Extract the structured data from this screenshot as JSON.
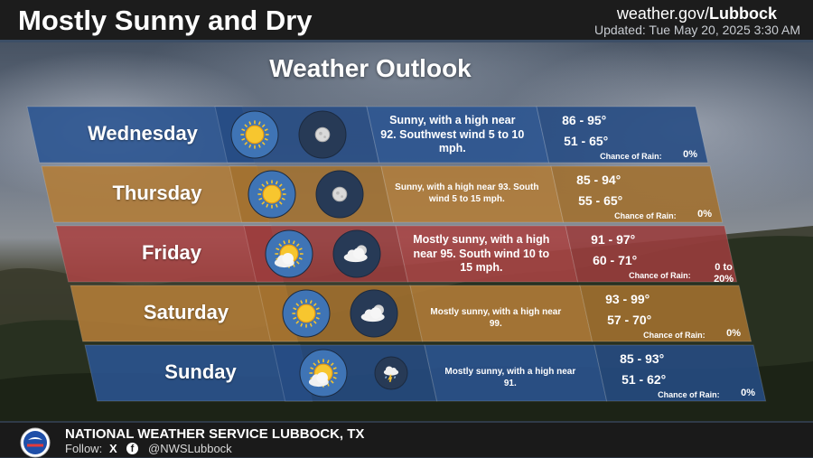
{
  "header": {
    "title": "Mostly Sunny and Dry",
    "site_prefix": "weather.gov/",
    "site_office": "Lubbock",
    "updated": "Updated: Tue May 20, 2025 3:30 AM"
  },
  "outlook_title": "Weather Outlook",
  "colors": {
    "blue": "#2f5a96",
    "orange": "#b9813a",
    "red": "#b04848",
    "topbar": "#1c1c1c"
  },
  "days": [
    {
      "name": "Wednesday",
      "color": "blue",
      "day_icon": "sunny-icon",
      "night_icon": "clear-night-icon",
      "description": "Sunny, with a high near 92. Southwest wind 5 to 10 mph.",
      "high": "86 - 95°",
      "low": "51 - 65°",
      "rain_label": "Chance of Rain:",
      "rain": "0%"
    },
    {
      "name": "Thursday",
      "color": "orange",
      "day_icon": "sunny-icon",
      "night_icon": "clear-night-icon",
      "description": "Sunny, with a high near 93. South wind 5 to 15 mph.",
      "high": "85 - 94°",
      "low": "55 - 65°",
      "rain_label": "Chance of Rain:",
      "rain": "0%"
    },
    {
      "name": "Friday",
      "color": "red",
      "day_icon": "mostly-sunny-icon",
      "night_icon": "partly-cloudy-night-icon",
      "description": "Mostly sunny, with a high near 95. South wind 10 to 15 mph.",
      "high": "91 - 97°",
      "low": "60 - 71°",
      "rain_label": "Chance of Rain:",
      "rain": "0 to 20%"
    },
    {
      "name": "Saturday",
      "color": "orange",
      "day_icon": "sunny-icon",
      "night_icon": "partly-cloudy-night-icon",
      "description": "Mostly sunny, with a high near 99.",
      "high": "93 - 99°",
      "low": "57 - 70°",
      "rain_label": "Chance of Rain:",
      "rain": "0%"
    },
    {
      "name": "Sunday",
      "color": "blue",
      "day_icon": "mostly-sunny-icon",
      "night_icon": "thunderstorm-icon",
      "description": "Mostly sunny, with a high near 91.",
      "high": "85 - 93°",
      "low": "51 - 62°",
      "rain_label": "Chance of Rain:",
      "rain": "0%"
    }
  ],
  "footer": {
    "org": "NATIONAL WEATHER SERVICE LUBBOCK, TX",
    "follow": "Follow:",
    "x_icon": "X",
    "fb_icon": "f",
    "handle": "@NWSLubbock",
    "logo": "nws-logo-icon"
  }
}
